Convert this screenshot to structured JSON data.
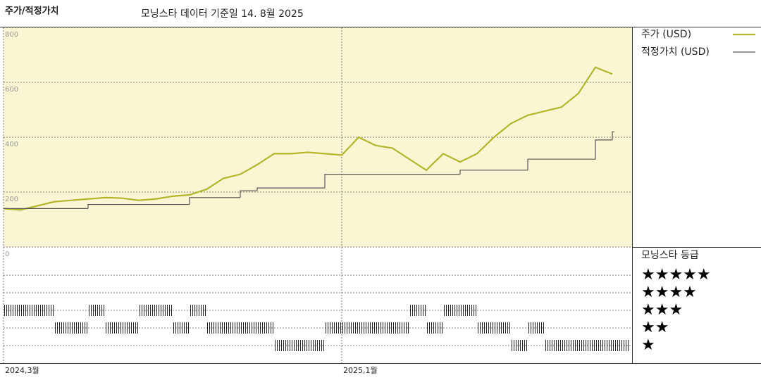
{
  "chart_data": [
    {
      "type": "line",
      "title": "주가/적정가치",
      "subtitle": "모닝스타 데이터 기준일 14. 8월 2025",
      "categories": [
        "2024,3월",
        null,
        null,
        null,
        null,
        null,
        null,
        null,
        null,
        null,
        null,
        null,
        null,
        null,
        null,
        null,
        null,
        null,
        null,
        null,
        "2025,1월",
        null,
        null,
        null,
        null,
        null,
        null,
        null,
        null,
        null,
        null,
        null,
        null,
        null,
        null,
        null,
        null
      ],
      "series": [
        {
          "name": "주가 (USD)",
          "color": "#b3b62b",
          "width": 2.2,
          "values": [
            140,
            135,
            150,
            165,
            170,
            175,
            180,
            178,
            170,
            175,
            185,
            190,
            210,
            250,
            265,
            300,
            340,
            340,
            345,
            340,
            335,
            400,
            370,
            360,
            320,
            280,
            340,
            310,
            340,
            400,
            450,
            480,
            495,
            510,
            560,
            655,
            630
          ]
        },
        {
          "name": "적정가치 (USD)",
          "color": "#555555",
          "width": 1.2,
          "step": true,
          "values": [
            140,
            140,
            140,
            140,
            140,
            155,
            155,
            155,
            155,
            155,
            155,
            180,
            180,
            180,
            205,
            215,
            215,
            215,
            215,
            265,
            265,
            265,
            265,
            265,
            265,
            265,
            265,
            280,
            280,
            280,
            280,
            320,
            320,
            320,
            320,
            390,
            420
          ]
        }
      ],
      "ylim": [
        0,
        800
      ],
      "yticks": [
        0,
        200,
        400,
        600,
        800
      ],
      "grid": true,
      "background": "#faf6d3"
    },
    {
      "type": "rating",
      "title": "모닝스타 등급",
      "levels": [
        {
          "value": 5,
          "label": "★★★★★"
        },
        {
          "value": 4,
          "label": "★★★★"
        },
        {
          "value": 3,
          "label": "★★★"
        },
        {
          "value": 2,
          "label": "★★"
        },
        {
          "value": 1,
          "label": "★"
        }
      ],
      "values": [
        3,
        3,
        3,
        2,
        2,
        3,
        2,
        2,
        3,
        3,
        2,
        3,
        2,
        2,
        2,
        2,
        1,
        1,
        1,
        2,
        2,
        2,
        2,
        2,
        3,
        2,
        3,
        3,
        2,
        2,
        1,
        2,
        1,
        1,
        1,
        1,
        1
      ],
      "color": "#222222"
    }
  ]
}
